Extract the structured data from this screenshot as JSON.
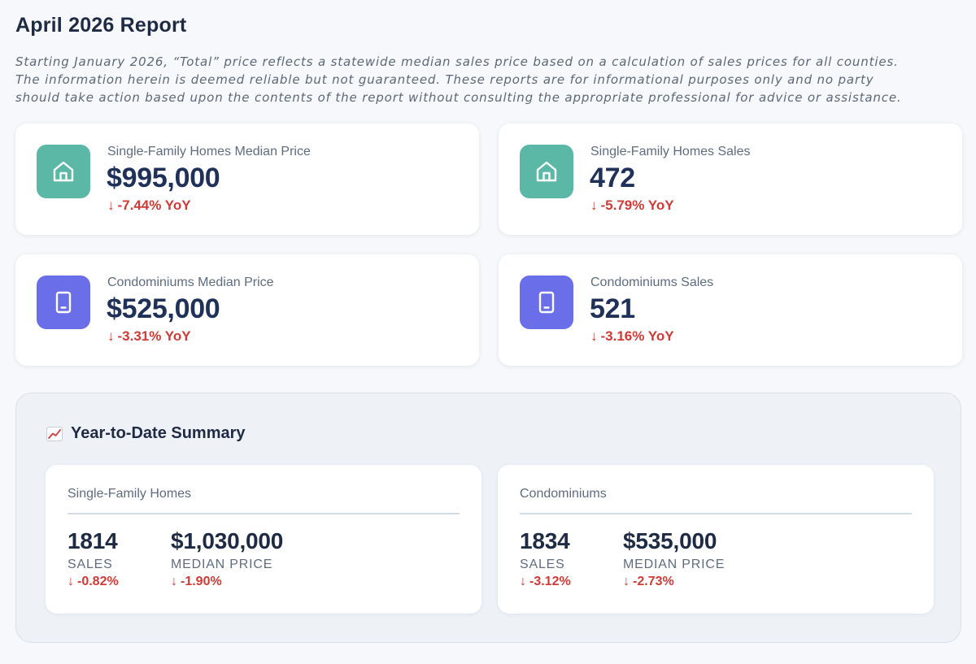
{
  "header": {
    "title": "April 2026 Report",
    "disclaimer": "Starting January 2026, “Total” price reflects a statewide median sales price based on a calculation of sales prices for all counties.\nThe information herein is deemed reliable but not guaranteed. These reports are for informational purposes only and no party\nshould take action based upon the contents of the report without consulting the appropriate professional for advice or assistance."
  },
  "colors": {
    "teal_icon": "#5bb8a6",
    "indigo_icon": "#6a6ee8",
    "negative": "#d13a35"
  },
  "cards": {
    "sfh_price": {
      "icon": "house-icon",
      "label": "Single-Family Homes Median Price",
      "value": "$995,000",
      "arrow": "↓",
      "change": "-7.44% YoY"
    },
    "sfh_sales": {
      "icon": "house-icon",
      "label": "Single-Family Homes Sales",
      "value": "472",
      "arrow": "↓",
      "change": "-5.79% YoY"
    },
    "condo_price": {
      "icon": "tablet-icon",
      "label": "Condominiums Median Price",
      "value": "$525,000",
      "arrow": "↓",
      "change": "-3.31% YoY"
    },
    "condo_sales": {
      "icon": "tablet-icon",
      "label": "Condominiums Sales",
      "value": "521",
      "arrow": "↓",
      "change": "-3.16% YoY"
    }
  },
  "ytd": {
    "icon": "chart-increasing-icon",
    "title": "Year-to-Date Summary",
    "sfh": {
      "title": "Single-Family Homes",
      "sales_value": "1814",
      "sales_label": "SALES",
      "sales_arrow": "↓",
      "sales_change": "-0.82%",
      "price_value": "$1,030,000",
      "price_label": "MEDIAN PRICE",
      "price_arrow": "↓",
      "price_change": "-1.90%"
    },
    "condo": {
      "title": "Condominiums",
      "sales_value": "1834",
      "sales_label": "SALES",
      "sales_arrow": "↓",
      "sales_change": "-3.12%",
      "price_value": "$535,000",
      "price_label": "MEDIAN PRICE",
      "price_arrow": "↓",
      "price_change": "-2.73%"
    }
  }
}
